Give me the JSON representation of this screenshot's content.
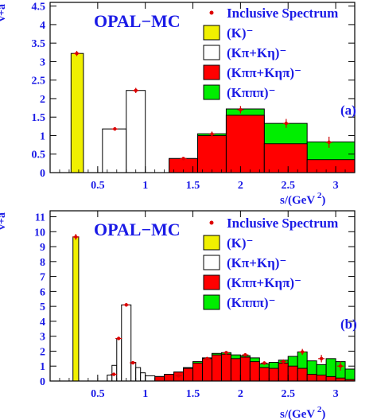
{
  "chart_data": [
    {
      "type": "bar",
      "title": "OPAL−MC",
      "ylabel": "v+a",
      "xlabel": "s/(GeV²)",
      "xlabel_main": "s/(GeV",
      "xlabel_exp": "2",
      "xlabel_close": ")",
      "panel_label": "(a)",
      "xlim": [
        0.0,
        3.2
      ],
      "ylim": [
        0.0,
        4.6
      ],
      "xticks": [
        "0.5",
        "1",
        "1.5",
        "2",
        "2.5",
        "3"
      ],
      "yticks": [
        "0",
        "0.5",
        "1",
        "1.5",
        "2",
        "2.5",
        "3",
        "3.5",
        "4",
        "4.5"
      ],
      "legend": [
        {
          "label": "Inclusive Spectrum",
          "kind": "point"
        },
        {
          "label": "(K)⁻",
          "kind": "box",
          "color": "#f0f000"
        },
        {
          "label": "(Kπ+Kη)⁻",
          "kind": "box",
          "color": "#ffffff"
        },
        {
          "label": "(Kππ+Kηπ)⁻",
          "kind": "box",
          "color": "#ff0000"
        },
        {
          "label": "(Kπππ)⁻",
          "kind": "box",
          "color": "#00ee00"
        }
      ],
      "series": [
        {
          "name": "(K)⁻",
          "color": "#f0f000",
          "bins": [
            [
              0.22,
              0.35,
              3.22
            ]
          ]
        },
        {
          "name": "(Kπ+Kη)⁻",
          "color": "#ffffff",
          "bins": [
            [
              0.55,
              0.8,
              1.18
            ],
            [
              0.8,
              1.0,
              2.22
            ],
            [
              1.0,
              1.25,
              0.0
            ]
          ]
        },
        {
          "name": "(Kππ+Kηπ)⁻",
          "color": "#ff0000",
          "bins": [
            [
              1.25,
              1.55,
              0.38
            ],
            [
              1.55,
              1.85,
              1.0
            ],
            [
              1.85,
              2.25,
              1.55
            ],
            [
              2.25,
              2.7,
              0.78
            ],
            [
              2.7,
              3.2,
              0.35
            ]
          ]
        },
        {
          "name": "(Kπππ)⁻",
          "color": "#00ee00",
          "bins": [
            [
              1.25,
              1.55,
              0.38
            ],
            [
              1.55,
              1.85,
              1.05
            ],
            [
              1.85,
              2.25,
              1.72
            ],
            [
              2.25,
              2.7,
              1.33
            ],
            [
              2.7,
              3.2,
              0.83
            ]
          ]
        }
      ],
      "points": [
        {
          "x": 0.28,
          "y": 3.22,
          "err": 0.07
        },
        {
          "x": 0.68,
          "y": 1.18,
          "err": 0.03
        },
        {
          "x": 0.9,
          "y": 2.22,
          "err": 0.07
        },
        {
          "x": 1.4,
          "y": 0.38,
          "err": 0.02
        },
        {
          "x": 1.7,
          "y": 1.04,
          "err": 0.07
        },
        {
          "x": 2.0,
          "y": 1.7,
          "err": 0.1
        },
        {
          "x": 2.48,
          "y": 1.33,
          "err": 0.12
        },
        {
          "x": 2.93,
          "y": 0.82,
          "err": 0.15
        }
      ]
    },
    {
      "type": "bar",
      "title": "OPAL−MC",
      "ylabel": "v+a",
      "xlabel": "s/(GeV²)",
      "xlabel_main": "s/(GeV",
      "xlabel_exp": "2",
      "xlabel_close": ")",
      "panel_label": "(b)",
      "xlim": [
        0.0,
        3.2
      ],
      "ylim": [
        0.0,
        11.4
      ],
      "xticks": [
        "0.5",
        "1",
        "1.5",
        "2",
        "2.5",
        "3"
      ],
      "yticks": [
        "0",
        "1",
        "2",
        "3",
        "4",
        "5",
        "6",
        "7",
        "8",
        "9",
        "10",
        "11"
      ],
      "legend": [
        {
          "label": "Inclusive Spectrum",
          "kind": "point"
        },
        {
          "label": "(K)⁻",
          "kind": "box",
          "color": "#f0f000"
        },
        {
          "label": "(Kπ+Kη)⁻",
          "kind": "box",
          "color": "#ffffff"
        },
        {
          "label": "(Kππ+Kηπ)⁻",
          "kind": "box",
          "color": "#ff0000"
        },
        {
          "label": "(Kπππ)⁻",
          "kind": "box",
          "color": "#00ee00"
        }
      ],
      "series": [
        {
          "name": "(K)⁻",
          "color": "#f0f000",
          "bins": [
            [
              0.24,
              0.3,
              9.65
            ]
          ]
        },
        {
          "name": "(Kπ+Kη)⁻",
          "color": "#ffffff",
          "bins": [
            [
              0.6,
              0.65,
              0.4
            ],
            [
              0.65,
              0.7,
              1.05
            ],
            [
              0.7,
              0.75,
              2.85
            ],
            [
              0.75,
              0.85,
              5.1
            ],
            [
              0.85,
              0.9,
              1.25
            ],
            [
              0.9,
              0.95,
              0.9
            ],
            [
              0.95,
              1.0,
              0.55
            ],
            [
              1.0,
              1.1,
              0.35
            ]
          ]
        },
        {
          "name": "(Kππ+Kηπ)⁻",
          "color": "#ff0000",
          "bins": [
            [
              1.1,
              1.2,
              0.3
            ],
            [
              1.2,
              1.3,
              0.45
            ],
            [
              1.3,
              1.4,
              0.6
            ],
            [
              1.4,
              1.5,
              0.85
            ],
            [
              1.5,
              1.6,
              1.2
            ],
            [
              1.6,
              1.7,
              1.5
            ],
            [
              1.7,
              1.8,
              1.75
            ],
            [
              1.8,
              1.9,
              1.8
            ],
            [
              1.9,
              2.0,
              1.5
            ],
            [
              2.0,
              2.1,
              1.6
            ],
            [
              2.1,
              2.2,
              1.3
            ],
            [
              2.2,
              2.3,
              0.9
            ],
            [
              2.3,
              2.4,
              0.85
            ],
            [
              2.4,
              2.5,
              1.2
            ],
            [
              2.5,
              2.6,
              1.0
            ],
            [
              2.6,
              2.7,
              0.85
            ],
            [
              2.7,
              2.8,
              0.45
            ],
            [
              2.8,
              2.9,
              0.4
            ],
            [
              2.9,
              3.0,
              0.3
            ],
            [
              3.0,
              3.1,
              0.2
            ],
            [
              3.1,
              3.2,
              0.1
            ]
          ]
        },
        {
          "name": "(Kπππ)⁻",
          "color": "#00ee00",
          "bins": [
            [
              1.1,
              1.2,
              0.3
            ],
            [
              1.2,
              1.3,
              0.45
            ],
            [
              1.3,
              1.4,
              0.6
            ],
            [
              1.4,
              1.5,
              0.9
            ],
            [
              1.5,
              1.6,
              1.3
            ],
            [
              1.6,
              1.7,
              1.55
            ],
            [
              1.7,
              1.8,
              1.85
            ],
            [
              1.8,
              1.9,
              1.9
            ],
            [
              1.9,
              2.0,
              1.75
            ],
            [
              2.0,
              2.1,
              1.7
            ],
            [
              2.1,
              2.2,
              1.55
            ],
            [
              2.2,
              2.3,
              1.15
            ],
            [
              2.3,
              2.4,
              1.25
            ],
            [
              2.4,
              2.5,
              1.4
            ],
            [
              2.5,
              2.6,
              1.65
            ],
            [
              2.6,
              2.7,
              1.95
            ],
            [
              2.7,
              2.8,
              1.35
            ],
            [
              2.8,
              2.9,
              1.1
            ],
            [
              2.9,
              3.0,
              1.5
            ],
            [
              3.0,
              3.1,
              1.3
            ],
            [
              3.1,
              3.2,
              0.8
            ]
          ]
        }
      ],
      "points": [
        {
          "x": 0.27,
          "y": 9.65,
          "err": 0.2
        },
        {
          "x": 0.67,
          "y": 0.45,
          "err": 0.05
        },
        {
          "x": 0.72,
          "y": 2.85,
          "err": 0.1
        },
        {
          "x": 0.8,
          "y": 5.1,
          "err": 0.12
        },
        {
          "x": 0.87,
          "y": 1.22,
          "err": 0.05
        },
        {
          "x": 1.35,
          "y": 0.35,
          "err": 0.05
        },
        {
          "x": 1.65,
          "y": 1.5,
          "err": 0.1
        },
        {
          "x": 1.85,
          "y": 1.9,
          "err": 0.1
        },
        {
          "x": 2.05,
          "y": 1.75,
          "err": 0.12
        },
        {
          "x": 2.25,
          "y": 1.2,
          "err": 0.12
        },
        {
          "x": 2.45,
          "y": 1.3,
          "err": 0.15
        },
        {
          "x": 2.65,
          "y": 1.95,
          "err": 0.2
        },
        {
          "x": 2.85,
          "y": 1.5,
          "err": 0.25
        },
        {
          "x": 3.05,
          "y": 1.0,
          "err": 0.3
        }
      ]
    }
  ]
}
